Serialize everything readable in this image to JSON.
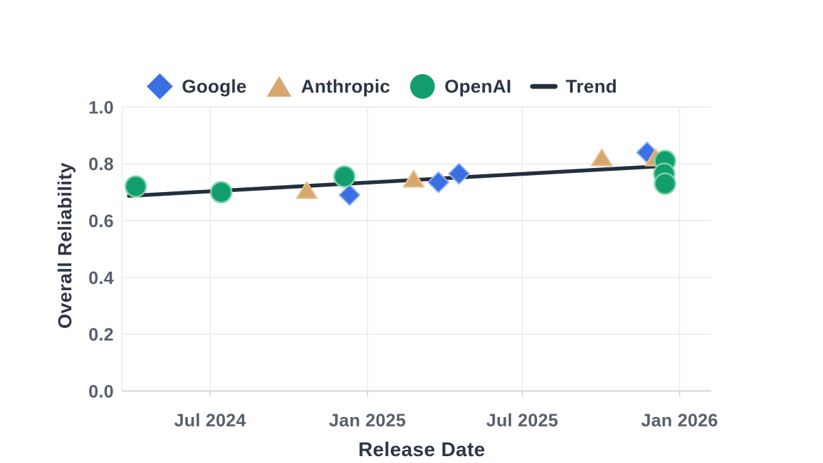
{
  "colors": {
    "background": "#ffffff",
    "grid_line": "#e8eaed",
    "axis_line": "#d4d8dd",
    "tick_mark": "#cfd4d9",
    "tick_label_text": "#575f6c",
    "axis_title_text": "#2e3646",
    "legend_text": "#2b3544",
    "google_blue": "#3b70e2",
    "anthropic_tan": "#d8a76e",
    "openai_green": "#129e6c",
    "trend_dark": "#242f3e"
  },
  "chart_data": {
    "type": "scatter",
    "title": "",
    "xlabel": "Release Date",
    "ylabel": "Overall Reliability",
    "grid": true,
    "legend_position": "top-center",
    "x_range": [
      "2024-03-20",
      "2026-02-07"
    ],
    "y_range": [
      0,
      1
    ],
    "x_ticks": [
      {
        "label": "Jul 2024",
        "date": "2024-07-01"
      },
      {
        "label": "Jan 2025",
        "date": "2025-01-01"
      },
      {
        "label": "Jul 2025",
        "date": "2025-07-01"
      },
      {
        "label": "Jan 2026",
        "date": "2026-01-01"
      }
    ],
    "y_ticks": [
      "0.0",
      "0.2",
      "0.4",
      "0.6",
      "0.8",
      "1.0"
    ],
    "series": [
      {
        "name": "Google",
        "marker": "diamond",
        "marker_icon": "diamond-marker-icon",
        "color": "#3b70e2",
        "stroke": "#9ab7ef",
        "points": [
          {
            "date": "2024-12-11",
            "value": 0.69
          },
          {
            "date": "2025-03-25",
            "value": 0.735
          },
          {
            "date": "2025-04-18",
            "value": 0.765
          },
          {
            "date": "2025-11-24",
            "value": 0.84
          }
        ]
      },
      {
        "name": "Anthropic",
        "marker": "triangle",
        "marker_icon": "triangle-marker-icon",
        "color": "#d8a76e",
        "stroke": "#e6c693",
        "points": [
          {
            "date": "2024-10-22",
            "value": 0.705
          },
          {
            "date": "2025-02-24",
            "value": 0.745
          },
          {
            "date": "2025-10-02",
            "value": 0.82
          },
          {
            "date": "2025-12-04",
            "value": 0.82
          }
        ]
      },
      {
        "name": "OpenAI",
        "marker": "circle",
        "marker_icon": "circle-marker-icon",
        "color": "#129e6c",
        "stroke": "#7bd3a8",
        "points": [
          {
            "date": "2024-04-05",
            "value": 0.72
          },
          {
            "date": "2024-07-14",
            "value": 0.7
          },
          {
            "date": "2024-12-05",
            "value": 0.755
          },
          {
            "date": "2025-12-15",
            "value": 0.81
          },
          {
            "date": "2025-12-14",
            "value": 0.765
          },
          {
            "date": "2025-12-15",
            "value": 0.73
          }
        ]
      }
    ],
    "trend": {
      "name": "Trend",
      "marker": "line",
      "marker_icon": "line-marker-icon",
      "color": "#242f3e",
      "start": {
        "date": "2024-03-28",
        "value": 0.687
      },
      "end": {
        "date": "2025-12-13",
        "value": 0.792
      }
    }
  }
}
